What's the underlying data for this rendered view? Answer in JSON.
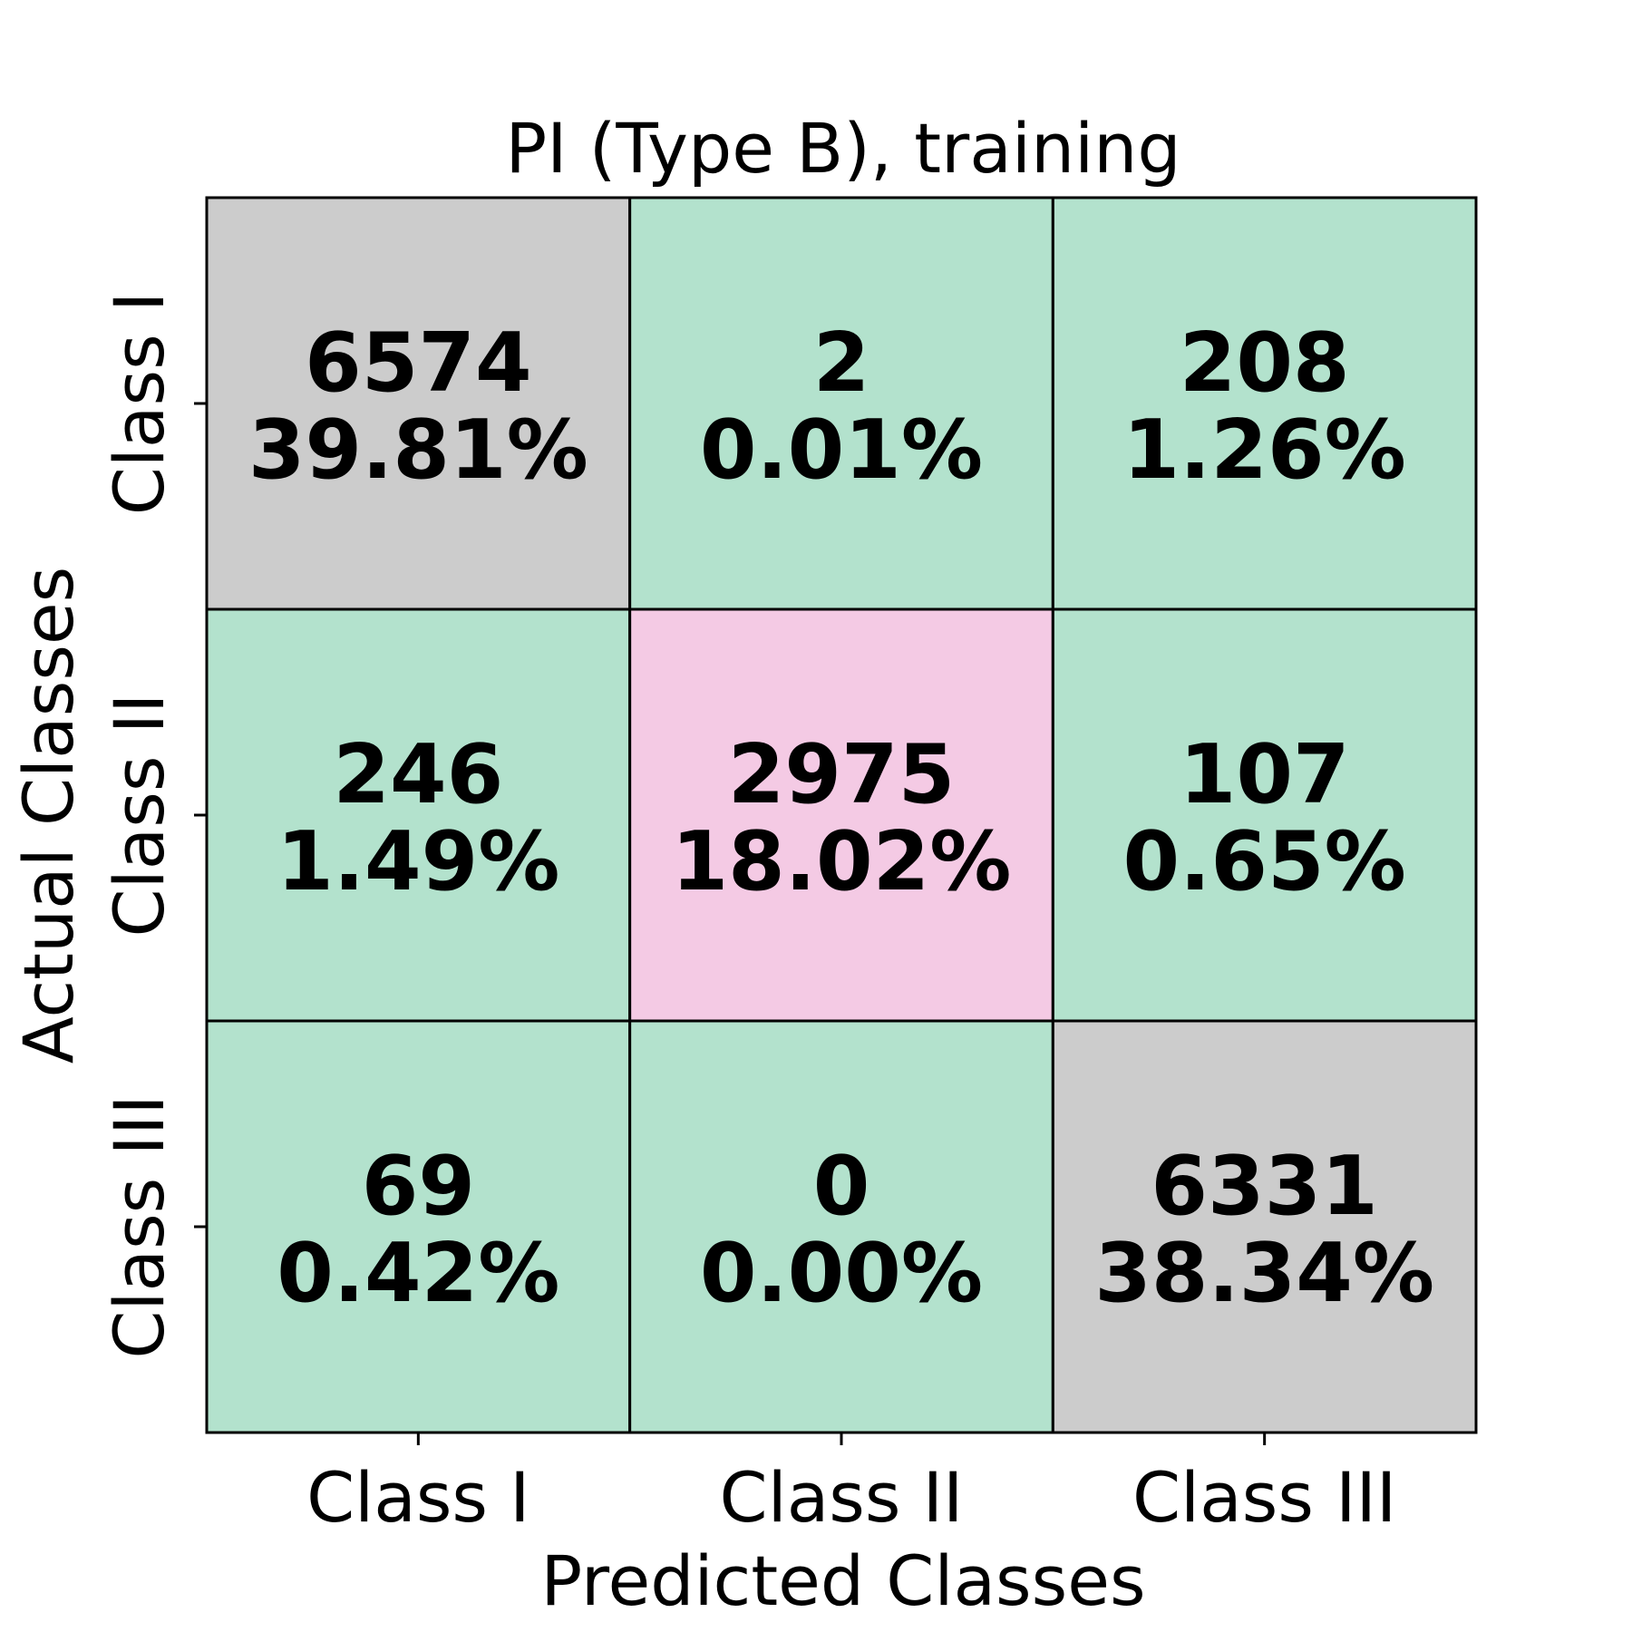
{
  "chart_data": {
    "type": "heatmap",
    "title": "PI (Type B), training",
    "xlabel": "Predicted Classes",
    "ylabel": "Actual Classes",
    "x_categories": [
      "Class I",
      "Class II",
      "Class III"
    ],
    "y_categories": [
      "Class I",
      "Class II",
      "Class III"
    ],
    "values": [
      [
        6574,
        2,
        208
      ],
      [
        246,
        2975,
        107
      ],
      [
        69,
        0,
        6331
      ]
    ],
    "percentages": [
      [
        "39.81%",
        "0.01%",
        "1.26%"
      ],
      [
        "1.49%",
        "18.02%",
        "0.65%"
      ],
      [
        "0.42%",
        "0.00%",
        "38.34%"
      ]
    ],
    "cell_colors": [
      [
        "#cccccc",
        "#b3e2cd",
        "#b3e2cd"
      ],
      [
        "#b3e2cd",
        "#f4cae4",
        "#b3e2cd"
      ],
      [
        "#b3e2cd",
        "#b3e2cd",
        "#cccccc"
      ]
    ],
    "grid": false,
    "legend": "none"
  }
}
